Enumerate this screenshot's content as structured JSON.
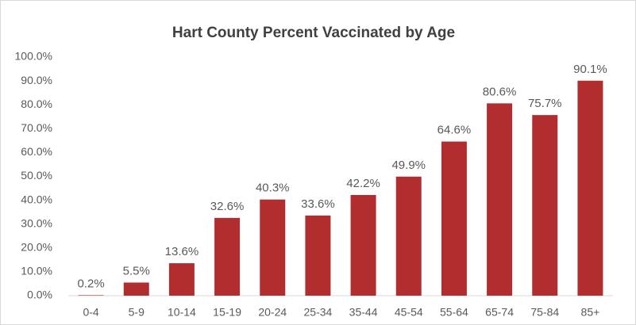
{
  "chart_data": {
    "type": "bar",
    "title": "Hart County Percent Vaccinated by Age",
    "categories": [
      "0-4",
      "5-9",
      "10-14",
      "15-19",
      "20-24",
      "25-34",
      "35-44",
      "45-54",
      "55-64",
      "65-74",
      "75-84",
      "85+"
    ],
    "values": [
      0.2,
      5.5,
      13.6,
      32.6,
      40.3,
      33.6,
      42.2,
      49.9,
      64.6,
      80.6,
      75.7,
      90.1
    ],
    "value_labels": [
      "0.2%",
      "5.5%",
      "13.6%",
      "32.6%",
      "40.3%",
      "33.6%",
      "42.2%",
      "49.9%",
      "64.6%",
      "80.6%",
      "75.7%",
      "90.1%"
    ],
    "color": "#b22e2e",
    "ylim": [
      0,
      100
    ],
    "yticks": [
      {
        "value": 0,
        "label": "0.0%"
      },
      {
        "value": 10,
        "label": "10.0%"
      },
      {
        "value": 20,
        "label": "20.0%"
      },
      {
        "value": 30,
        "label": "30.0%"
      },
      {
        "value": 40,
        "label": "40.0%"
      },
      {
        "value": 50,
        "label": "50.0%"
      },
      {
        "value": 60,
        "label": "60.0%"
      },
      {
        "value": 70,
        "label": "70.0%"
      },
      {
        "value": 80,
        "label": "80.0%"
      },
      {
        "value": 90,
        "label": "90.0%"
      },
      {
        "value": 100,
        "label": "100.0%"
      }
    ],
    "grid": false
  }
}
